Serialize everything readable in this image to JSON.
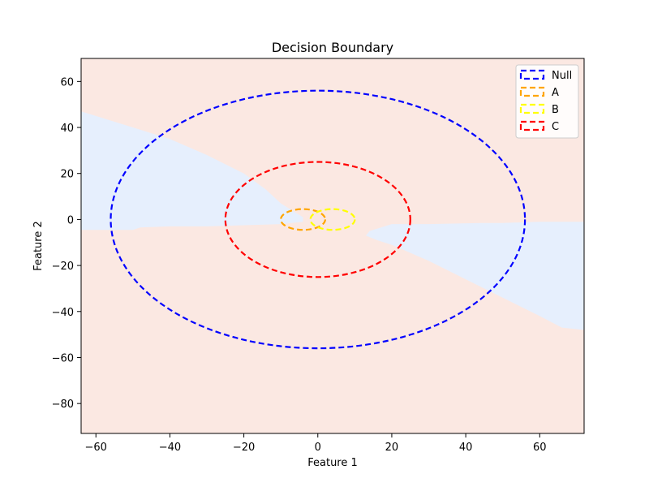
{
  "chart_data": {
    "type": "contour",
    "title": "Decision Boundary",
    "xlabel": "Feature 1",
    "ylabel": "Feature 2",
    "xlim": [
      -64,
      72
    ],
    "ylim": [
      -93,
      70
    ],
    "xticks": [
      -60,
      -40,
      -20,
      0,
      20,
      40,
      60
    ],
    "yticks": [
      -80,
      -60,
      -40,
      -20,
      0,
      20,
      40,
      60
    ],
    "tick_labels_x": [
      "−60",
      "−40",
      "−20",
      "0",
      "20",
      "40",
      "60"
    ],
    "tick_labels_y": [
      "−80",
      "−60",
      "−40",
      "−20",
      "0",
      "20",
      "40",
      "60"
    ],
    "grid": false,
    "legend_position": "top-right",
    "background_color": "#fbe8e2",
    "region_color": "#e6effd",
    "regions": [
      {
        "points": [
          [
            -64,
            47
          ],
          [
            -50,
            40
          ],
          [
            -40,
            35
          ],
          [
            -30,
            28
          ],
          [
            -20,
            20
          ],
          [
            -14,
            13
          ],
          [
            -10,
            7
          ],
          [
            -6,
            3
          ],
          [
            -4,
            1
          ],
          [
            -4,
            -1
          ],
          [
            -10,
            -2
          ],
          [
            -20,
            -2.5
          ],
          [
            -30,
            -3
          ],
          [
            -40,
            -3
          ],
          [
            -48,
            -3.5
          ],
          [
            -50,
            -4.5
          ],
          [
            -64,
            -4.5
          ]
        ]
      },
      {
        "points": [
          [
            72,
            -1
          ],
          [
            60,
            -1
          ],
          [
            50,
            -1.5
          ],
          [
            44,
            -1.5
          ],
          [
            30,
            -2
          ],
          [
            20,
            -2
          ],
          [
            14,
            -5
          ],
          [
            13,
            -7
          ],
          [
            16,
            -9
          ],
          [
            20,
            -11
          ],
          [
            30,
            -18
          ],
          [
            40,
            -26
          ],
          [
            50,
            -34
          ],
          [
            60,
            -42
          ],
          [
            66,
            -47
          ],
          [
            72,
            -48
          ]
        ]
      }
    ],
    "series": [
      {
        "name": "Null",
        "color": "#0000ff",
        "center": [
          0,
          0
        ],
        "rx": 56,
        "ry": 56
      },
      {
        "name": "A",
        "color": "#ffa500",
        "center": [
          -4,
          0
        ],
        "rx": 6,
        "ry": 4.5
      },
      {
        "name": "B",
        "color": "#ffff00",
        "center": [
          4,
          0
        ],
        "rx": 6,
        "ry": 4.5
      },
      {
        "name": "C",
        "color": "#ff0000",
        "center": [
          0,
          0
        ],
        "rx": 25,
        "ry": 25
      }
    ]
  }
}
